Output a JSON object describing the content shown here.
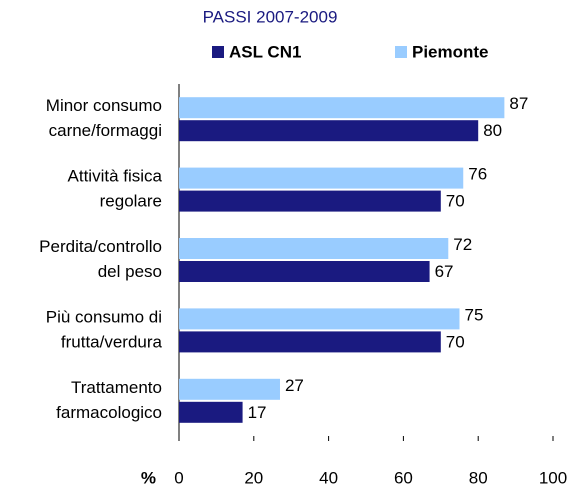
{
  "chart_data": {
    "type": "hbar",
    "subtitle": "PASSI 2007-2009",
    "x_label": "%",
    "categories": [
      [
        "Minor consumo",
        "carne/formaggi"
      ],
      [
        "Attività fisica",
        "regolare"
      ],
      [
        "Perdita/controllo",
        "del peso"
      ],
      [
        "Più consumo di",
        "frutta/verdura"
      ],
      [
        "Trattamento",
        "farmacologico"
      ]
    ],
    "series": [
      {
        "name": "ASL CN1",
        "color": "#1a1a80",
        "values": [
          80,
          70,
          67,
          70,
          17
        ]
      },
      {
        "name": "Piemonte",
        "color": "#99ccff",
        "values": [
          87,
          76,
          72,
          75,
          27
        ]
      }
    ],
    "xlim": [
      0,
      100
    ],
    "xticks": [
      0,
      20,
      40,
      60,
      80,
      100
    ]
  }
}
